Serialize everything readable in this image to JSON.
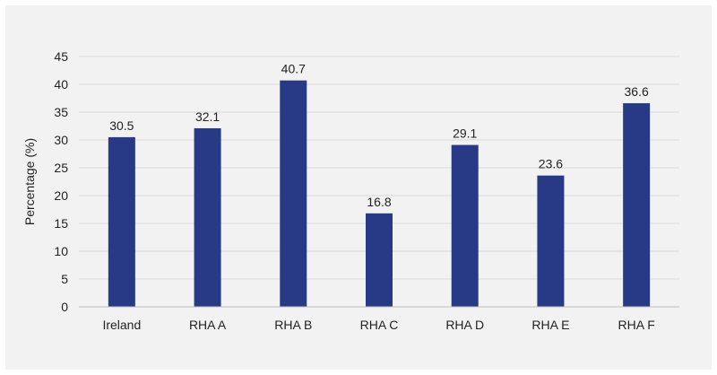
{
  "chart_data": {
    "type": "bar",
    "categories": [
      "Ireland",
      "RHA A",
      "RHA B",
      "RHA C",
      "RHA D",
      "RHA E",
      "RHA F"
    ],
    "values": [
      30.5,
      32.1,
      40.7,
      16.8,
      29.1,
      23.6,
      36.6
    ],
    "data_labels": [
      "30.5",
      "32.1",
      "40.7",
      "16.8",
      "29.1",
      "23.6",
      "36.6"
    ],
    "ylabel": "Percentage (%)",
    "xlabel": "",
    "ylim": [
      0,
      45
    ],
    "yticks": [
      0,
      5,
      10,
      15,
      20,
      25,
      30,
      35,
      40,
      45
    ],
    "grid": true,
    "legend": "none",
    "colors": {
      "bar": "#283a85",
      "grid": "#d9d9d9",
      "background": "#f2f2f2"
    }
  }
}
